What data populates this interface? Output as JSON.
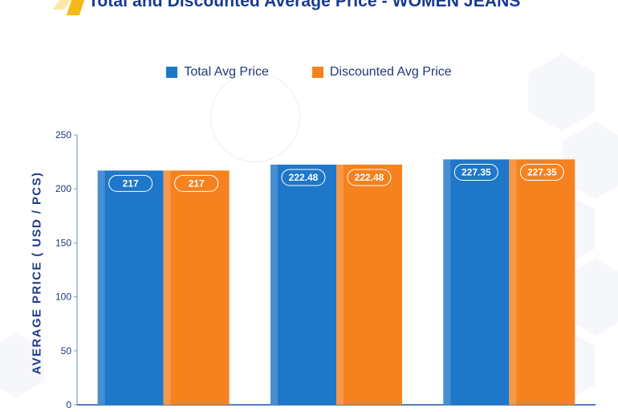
{
  "chart_data": {
    "type": "bar",
    "title": "Total and Discounted Average Price - WOMEN JEANS",
    "xlabel": "",
    "ylabel": "AVERAGE PRICE ( USD / PCS)",
    "categories": [
      "",
      "",
      ""
    ],
    "series": [
      {
        "name": "Total Avg Price",
        "values": [
          217,
          222.48,
          227.35
        ],
        "labels": [
          "217",
          "222.48",
          "227.35"
        ],
        "color": "#1f77c9"
      },
      {
        "name": "Discounted Avg Price",
        "values": [
          217,
          222.48,
          227.35
        ],
        "labels": [
          "217",
          "222.48",
          "227.35"
        ],
        "color": "#f5821f"
      }
    ],
    "ylim": [
      0,
      250
    ],
    "yticks": [
      0,
      50,
      100,
      150,
      200,
      250
    ],
    "ytick_labels": [
      "0",
      "50",
      "100",
      "150",
      "200",
      "250"
    ],
    "grid": false,
    "legend_position": "top-center"
  }
}
